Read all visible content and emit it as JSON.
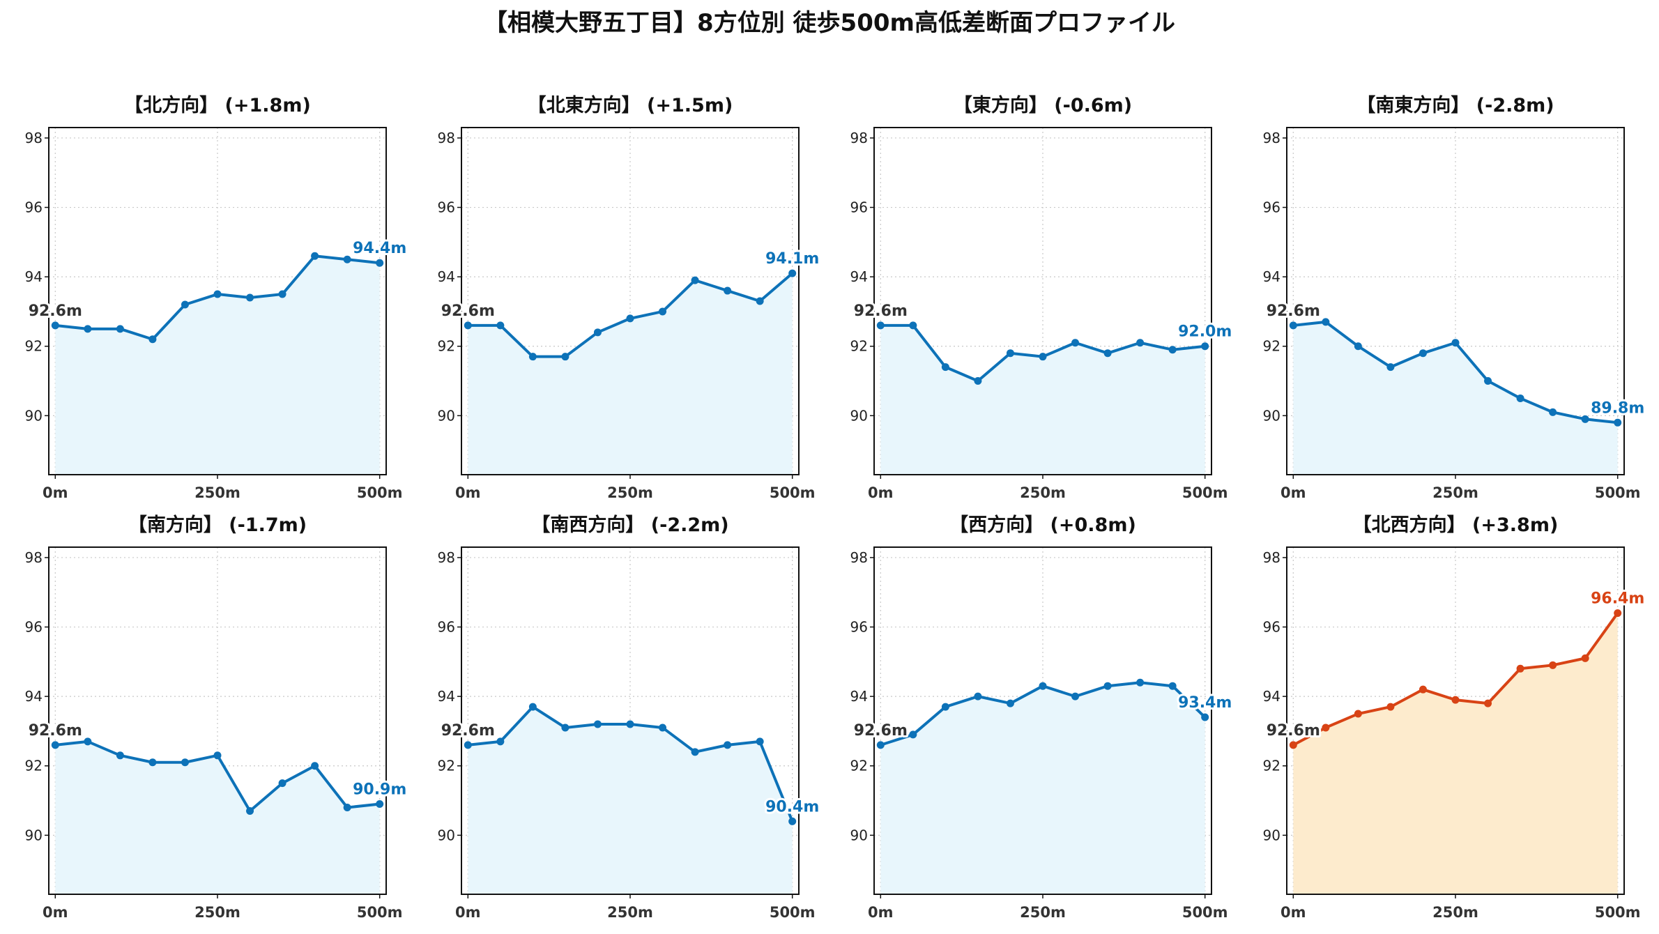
{
  "title": "【相模大野五丁目】8方位別 徒歩500m高低差断面プロファイル",
  "colors": {
    "normal_line": "#0d72b8",
    "normal_fill": "#e8f6fc",
    "highlight_line": "#d84315",
    "highlight_fill": "#fdebcd",
    "start_label": "#333333"
  },
  "axes": {
    "x_ticks": [
      "0m",
      "250m",
      "500m"
    ],
    "x_tick_values": [
      0,
      250,
      500
    ],
    "y_ticks": [
      "90",
      "92",
      "94",
      "96",
      "98"
    ],
    "y_tick_values": [
      90,
      92,
      94,
      96,
      98
    ],
    "xlim": [
      -10,
      510
    ],
    "ylim": [
      88.3,
      98.3
    ],
    "grid": true
  },
  "chart_data": [
    {
      "type": "area",
      "title": "【北方向】 (+1.8m)",
      "x": [
        0,
        50,
        100,
        150,
        200,
        250,
        300,
        350,
        400,
        450,
        500
      ],
      "y": [
        92.6,
        92.5,
        92.5,
        92.2,
        93.2,
        93.5,
        93.4,
        93.5,
        94.6,
        94.5,
        94.4
      ],
      "start_label": "92.6m",
      "end_label": "94.4m",
      "highlight": false
    },
    {
      "type": "area",
      "title": "【北東方向】 (+1.5m)",
      "x": [
        0,
        50,
        100,
        150,
        200,
        250,
        300,
        350,
        400,
        450,
        500
      ],
      "y": [
        92.6,
        92.6,
        91.7,
        91.7,
        92.4,
        92.8,
        93.0,
        93.9,
        93.6,
        93.3,
        94.1
      ],
      "start_label": "92.6m",
      "end_label": "94.1m",
      "highlight": false
    },
    {
      "type": "area",
      "title": "【東方向】 (-0.6m)",
      "x": [
        0,
        50,
        100,
        150,
        200,
        250,
        300,
        350,
        400,
        450,
        500
      ],
      "y": [
        92.6,
        92.6,
        91.4,
        91.0,
        91.8,
        91.7,
        92.1,
        91.8,
        92.1,
        91.9,
        92.0
      ],
      "start_label": "92.6m",
      "end_label": "92.0m",
      "highlight": false
    },
    {
      "type": "area",
      "title": "【南東方向】 (-2.8m)",
      "x": [
        0,
        50,
        100,
        150,
        200,
        250,
        300,
        350,
        400,
        450,
        500
      ],
      "y": [
        92.6,
        92.7,
        92.0,
        91.4,
        91.8,
        92.1,
        91.0,
        90.5,
        90.1,
        89.9,
        89.8
      ],
      "start_label": "92.6m",
      "end_label": "89.8m",
      "highlight": false
    },
    {
      "type": "area",
      "title": "【南方向】 (-1.7m)",
      "x": [
        0,
        50,
        100,
        150,
        200,
        250,
        300,
        350,
        400,
        450,
        500
      ],
      "y": [
        92.6,
        92.7,
        92.3,
        92.1,
        92.1,
        92.3,
        90.7,
        91.5,
        92.0,
        90.8,
        90.9
      ],
      "start_label": "92.6m",
      "end_label": "90.9m",
      "highlight": false
    },
    {
      "type": "area",
      "title": "【南西方向】 (-2.2m)",
      "x": [
        0,
        50,
        100,
        150,
        200,
        250,
        300,
        350,
        400,
        450,
        500
      ],
      "y": [
        92.6,
        92.7,
        93.7,
        93.1,
        93.2,
        93.2,
        93.1,
        92.4,
        92.6,
        92.7,
        90.4
      ],
      "start_label": "92.6m",
      "end_label": "90.4m",
      "highlight": false
    },
    {
      "type": "area",
      "title": "【西方向】 (+0.8m)",
      "x": [
        0,
        50,
        100,
        150,
        200,
        250,
        300,
        350,
        400,
        450,
        500
      ],
      "y": [
        92.6,
        92.9,
        93.7,
        94.0,
        93.8,
        94.3,
        94.0,
        94.3,
        94.4,
        94.3,
        93.4
      ],
      "start_label": "92.6m",
      "end_label": "93.4m",
      "highlight": false
    },
    {
      "type": "area",
      "title": "【北西方向】 (+3.8m)",
      "x": [
        0,
        50,
        100,
        150,
        200,
        250,
        300,
        350,
        400,
        450,
        500
      ],
      "y": [
        92.6,
        93.1,
        93.5,
        93.7,
        94.2,
        93.9,
        93.8,
        94.8,
        94.9,
        95.1,
        96.4
      ],
      "start_label": "92.6m",
      "end_label": "96.4m",
      "highlight": true
    }
  ]
}
